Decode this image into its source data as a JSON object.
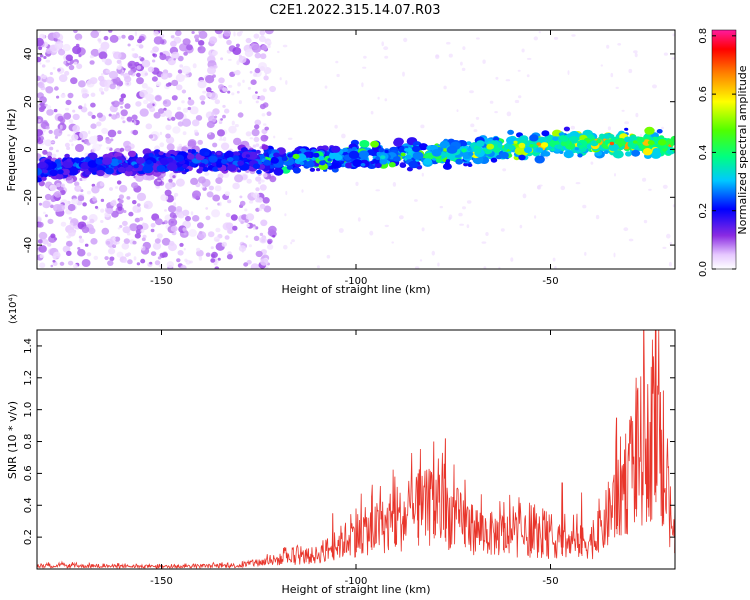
{
  "title": "C2E1.2022.315.14.07.R03",
  "chart_data": [
    {
      "type": "heatmap",
      "xlabel": "Height of straight line (km)",
      "ylabel": "Frequency (Hz)",
      "xlim": [
        -182,
        -18
      ],
      "ylim": [
        -50,
        50
      ],
      "xticks": [
        -150,
        -100,
        -50
      ],
      "yticks": [
        -40,
        -20,
        0,
        20,
        40
      ],
      "xtick_labels": [
        "-150",
        "-100",
        "-50"
      ],
      "ytick_labels": [
        "-40",
        "-20",
        "0",
        "20",
        "40"
      ],
      "band_center_hz": [
        {
          "x": -182,
          "y": -8
        },
        {
          "x": -160,
          "y": -6
        },
        {
          "x": -140,
          "y": -5
        },
        {
          "x": -120,
          "y": -4
        },
        {
          "x": -100,
          "y": -3
        },
        {
          "x": -80,
          "y": -2
        },
        {
          "x": -60,
          "y": 1
        },
        {
          "x": -40,
          "y": 3
        },
        {
          "x": -20,
          "y": 2
        }
      ],
      "noise_region_x": [
        -182,
        -125
      ],
      "colorbar": {
        "label": "Normalized spectral amplitude",
        "range": [
          0,
          0.82
        ],
        "ticks": [
          0.0,
          0.2,
          0.4,
          0.6,
          0.8
        ],
        "tick_labels": [
          "0.0",
          "0.2",
          "0.4",
          "0.6",
          "0.8"
        ]
      }
    },
    {
      "type": "line",
      "xlabel": "Height of straight line (km)",
      "ylabel": "SNR (10 * v/v)",
      "multiplier": "(x10⁴)",
      "xlim": [
        -182,
        -18
      ],
      "ylim": [
        0,
        1.5
      ],
      "xticks": [
        -150,
        -100,
        -50
      ],
      "yticks": [
        0.2,
        0.4,
        0.6,
        0.8,
        1.0,
        1.2,
        1.4
      ],
      "xtick_labels": [
        "-150",
        "-100",
        "-50"
      ],
      "ytick_labels": [
        "0.2",
        "0.4",
        "0.6",
        "0.8",
        "1.0",
        "1.2",
        "1.4"
      ],
      "color": "#e8352b",
      "envelope": [
        {
          "x": -182,
          "y": 0.03
        },
        {
          "x": -150,
          "y": 0.02
        },
        {
          "x": -130,
          "y": 0.03
        },
        {
          "x": -120,
          "y": 0.08
        },
        {
          "x": -110,
          "y": 0.12
        },
        {
          "x": -100,
          "y": 0.3
        },
        {
          "x": -90,
          "y": 0.4
        },
        {
          "x": -80,
          "y": 0.55
        },
        {
          "x": -75,
          "y": 0.45
        },
        {
          "x": -70,
          "y": 0.35
        },
        {
          "x": -65,
          "y": 0.3
        },
        {
          "x": -55,
          "y": 0.28
        },
        {
          "x": -45,
          "y": 0.22
        },
        {
          "x": -38,
          "y": 0.25
        },
        {
          "x": -32,
          "y": 0.7
        },
        {
          "x": -27,
          "y": 1.0
        },
        {
          "x": -23,
          "y": 1.2
        },
        {
          "x": -20,
          "y": 0.6
        },
        {
          "x": -18,
          "y": 0.25
        }
      ],
      "peaks": [
        {
          "x": -106,
          "y": 0.35
        },
        {
          "x": -100,
          "y": 0.38
        },
        {
          "x": -96,
          "y": 0.46
        },
        {
          "x": -90,
          "y": 0.58
        },
        {
          "x": -84,
          "y": 0.6
        },
        {
          "x": -80,
          "y": 0.8
        },
        {
          "x": -77,
          "y": 0.82
        },
        {
          "x": -72,
          "y": 0.56
        },
        {
          "x": -62,
          "y": 0.42
        },
        {
          "x": -55,
          "y": 0.4
        },
        {
          "x": -52,
          "y": 0.38
        },
        {
          "x": -47,
          "y": 0.54
        },
        {
          "x": -42,
          "y": 0.48
        },
        {
          "x": -33,
          "y": 0.95
        },
        {
          "x": -28,
          "y": 1.2
        },
        {
          "x": -25,
          "y": 1.16
        },
        {
          "x": -23,
          "y": 1.44
        },
        {
          "x": -21,
          "y": 1.12
        },
        {
          "x": -18,
          "y": 0.4
        }
      ]
    }
  ]
}
